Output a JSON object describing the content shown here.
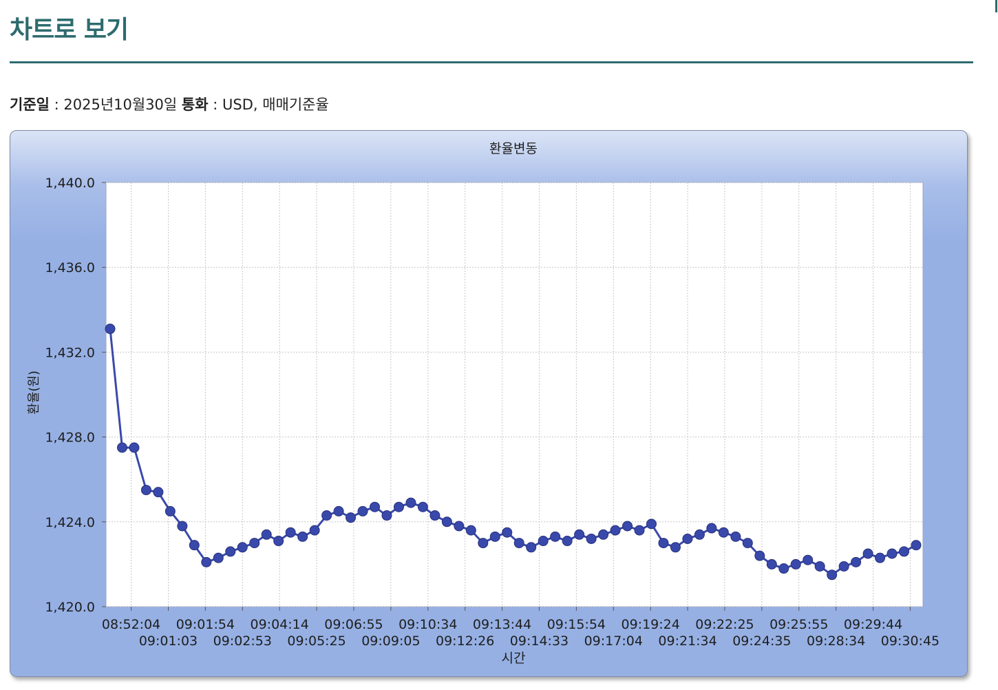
{
  "page": {
    "title": "차트로 보기",
    "info": {
      "base_date_label": "기준일",
      "base_date_value": " : 2025년10월30일 ",
      "currency_label": "통화",
      "currency_value": " : USD, 매매기준율"
    }
  },
  "colors": {
    "heading": "#2d6b6e",
    "series": "#3949ab",
    "panel": "#96b0e4"
  },
  "chart_data": {
    "type": "line",
    "title": "환율변동",
    "xlabel": "시간",
    "ylabel": "환율(원)",
    "ylim": [
      1420.0,
      1440.0
    ],
    "yticks": [
      "1,420.0",
      "1,424.0",
      "1,428.0",
      "1,432.0",
      "1,436.0",
      "1,440.0"
    ],
    "ytick_values": [
      1420,
      1424,
      1428,
      1432,
      1436,
      1440
    ],
    "grid": true,
    "legend": "none",
    "xtick_labels": [
      "08:52:04",
      "09:01:03",
      "09:01:54",
      "09:02:53",
      "09:04:14",
      "09:05:25",
      "09:06:55",
      "09:09:05",
      "09:10:34",
      "09:12:26",
      "09:13:44",
      "09:14:33",
      "09:15:54",
      "09:17:04",
      "09:19:24",
      "09:21:34",
      "09:22:25",
      "09:24:35",
      "09:25:55",
      "09:28:34",
      "09:29:44",
      "09:30:45"
    ],
    "series": [
      {
        "values": [
          1433.1,
          1427.5,
          1427.5,
          1425.5,
          1425.4,
          1424.5,
          1423.8,
          1422.9,
          1422.1,
          1422.3,
          1422.6,
          1422.8,
          1423.0,
          1423.4,
          1423.1,
          1423.5,
          1423.3,
          1423.6,
          1424.3,
          1424.5,
          1424.2,
          1424.5,
          1424.7,
          1424.3,
          1424.7,
          1424.9,
          1424.7,
          1424.3,
          1424.0,
          1423.8,
          1423.6,
          1423.0,
          1423.3,
          1423.5,
          1423.0,
          1422.8,
          1423.1,
          1423.3,
          1423.1,
          1423.4,
          1423.2,
          1423.4,
          1423.6,
          1423.8,
          1423.6,
          1423.9,
          1423.0,
          1422.8,
          1423.2,
          1423.4,
          1423.7,
          1423.5,
          1423.3,
          1423.0,
          1422.4,
          1422.0,
          1421.8,
          1422.0,
          1422.2,
          1421.9,
          1421.5,
          1421.9,
          1422.1,
          1422.5,
          1422.3,
          1422.5,
          1422.6,
          1422.9
        ]
      }
    ]
  }
}
